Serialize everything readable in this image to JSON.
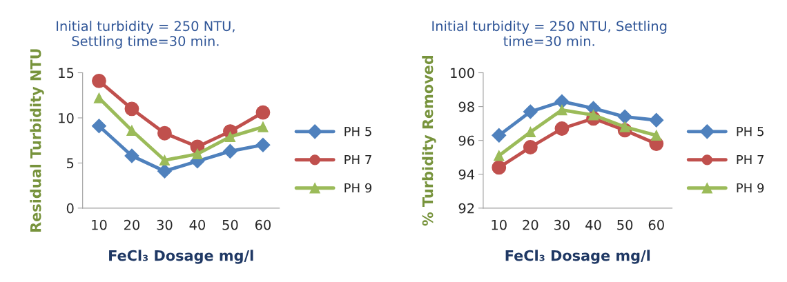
{
  "chart_data": [
    {
      "type": "line",
      "title": "Initial turbidity = 250 NTU,\nSettling time=30 min.",
      "xlabel": "FeCl₃ Dosage mg/l",
      "ylabel": "Residual Turbidity NTU",
      "categories": [
        "10",
        "20",
        "30",
        "40",
        "50",
        "60"
      ],
      "ylim": [
        0,
        15
      ],
      "yticks": [
        0,
        5,
        10,
        15
      ],
      "grid": false,
      "legend": "right",
      "series": [
        {
          "name": "PH 5",
          "color": "#4f81bd",
          "marker": "diamond",
          "values": [
            9.1,
            5.8,
            4.1,
            5.2,
            6.3,
            7.0
          ]
        },
        {
          "name": "PH 7",
          "color": "#c0504d",
          "marker": "circle",
          "values": [
            14.1,
            11.0,
            8.3,
            6.8,
            8.5,
            10.6
          ]
        },
        {
          "name": "PH 9",
          "color": "#9bbb59",
          "marker": "triangle",
          "values": [
            12.2,
            8.6,
            5.3,
            6.0,
            7.9,
            9.0
          ]
        }
      ]
    },
    {
      "type": "line",
      "title": "Initial turbidity = 250 NTU, Settling\ntime=30 min.",
      "xlabel": "FeCl₃ Dosage mg/l",
      "ylabel": "% Turbidity Removed",
      "categories": [
        "10",
        "20",
        "30",
        "40",
        "50",
        "60"
      ],
      "ylim": [
        92,
        100
      ],
      "yticks": [
        92,
        94,
        96,
        98,
        100
      ],
      "grid": false,
      "legend": "right",
      "series": [
        {
          "name": "PH 5",
          "color": "#4f81bd",
          "marker": "diamond",
          "values": [
            96.3,
            97.7,
            98.3,
            97.9,
            97.4,
            97.2
          ]
        },
        {
          "name": "PH 7",
          "color": "#c0504d",
          "marker": "circle",
          "values": [
            94.4,
            95.6,
            96.7,
            97.3,
            96.6,
            95.8
          ]
        },
        {
          "name": "PH 9",
          "color": "#9bbb59",
          "marker": "triangle",
          "values": [
            95.1,
            96.5,
            97.8,
            97.5,
            96.8,
            96.3
          ]
        }
      ]
    }
  ]
}
